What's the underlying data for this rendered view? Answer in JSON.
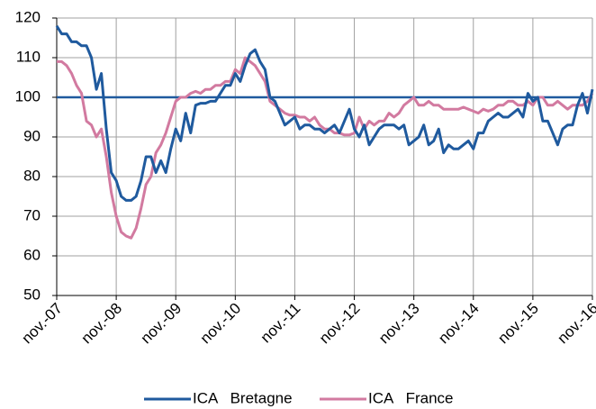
{
  "chart_data": {
    "type": "line",
    "categories": [
      "nov.-07",
      null,
      null,
      null,
      null,
      null,
      null,
      null,
      null,
      null,
      null,
      null,
      "nov.-08",
      null,
      null,
      null,
      null,
      null,
      null,
      null,
      null,
      null,
      null,
      null,
      "nov.-09",
      null,
      null,
      null,
      null,
      null,
      null,
      null,
      null,
      null,
      null,
      null,
      "nov.-10",
      null,
      null,
      null,
      null,
      null,
      null,
      null,
      null,
      null,
      null,
      null,
      "nov.-11",
      null,
      null,
      null,
      null,
      null,
      null,
      null,
      null,
      null,
      null,
      null,
      "nov.-12",
      null,
      null,
      null,
      null,
      null,
      null,
      null,
      null,
      null,
      null,
      null,
      "nov.-13",
      null,
      null,
      null,
      null,
      null,
      null,
      null,
      null,
      null,
      null,
      null,
      "nov.-14",
      null,
      null,
      null,
      null,
      null,
      null,
      null,
      null,
      null,
      null,
      null,
      "nov.-15",
      null,
      null,
      null,
      null,
      null,
      null,
      null,
      null,
      null,
      null,
      null,
      "nov.-16"
    ],
    "series": [
      {
        "name": "ICA   Bretagne",
        "color": "#1f5a9e",
        "values": [
          118,
          116,
          116,
          114,
          114,
          113,
          113,
          110,
          102,
          106,
          92,
          81,
          79,
          75,
          74,
          74,
          75,
          79,
          85,
          85,
          81,
          84,
          81,
          87,
          92,
          89,
          96,
          91,
          98,
          98.5,
          98.5,
          99,
          99,
          101,
          103,
          103,
          106,
          104,
          108,
          111,
          112,
          109,
          107,
          100,
          99,
          96,
          93,
          94,
          95,
          92,
          93,
          93,
          92,
          92,
          91,
          92,
          93,
          91,
          94,
          97,
          92,
          90,
          93,
          88,
          90,
          92,
          93,
          93,
          93,
          92,
          93,
          88,
          89,
          90,
          93,
          88,
          89,
          92,
          86,
          88,
          87,
          87,
          88,
          89,
          87,
          91,
          91,
          94,
          95,
          96,
          95,
          95,
          96,
          97,
          95,
          101,
          99,
          100,
          94,
          94,
          91,
          88,
          92,
          93,
          93,
          98,
          101,
          96,
          102
        ]
      },
      {
        "name": "ICA   France",
        "color": "#d27aa0",
        "values": [
          109,
          109,
          108,
          106,
          103,
          101,
          94,
          93,
          90,
          92,
          85,
          76,
          70,
          66,
          65,
          64.5,
          67,
          72,
          78,
          80,
          86,
          88,
          91,
          95,
          99,
          100,
          100,
          101,
          101.5,
          101,
          102,
          102,
          103,
          103,
          104,
          104,
          107,
          106,
          110,
          109,
          108,
          106,
          104,
          99,
          98,
          97,
          96,
          95.5,
          95.5,
          95,
          95,
          94,
          95,
          93,
          92,
          92,
          91,
          91,
          90.5,
          90.5,
          91,
          95,
          92,
          94,
          93,
          94,
          94,
          96,
          95,
          96,
          98,
          99,
          100,
          98,
          98,
          99,
          98,
          98,
          97,
          97,
          97,
          97,
          97.5,
          97,
          96.5,
          96,
          97,
          96.5,
          97,
          98,
          98,
          99,
          99,
          98,
          98,
          99,
          98,
          100,
          100,
          98,
          98,
          99,
          98,
          97,
          98,
          98,
          98,
          99,
          101
        ]
      }
    ],
    "reference_line": 100,
    "reference_color": "#1f5a9e",
    "ylim": [
      50,
      120
    ],
    "yticks": [
      50,
      60,
      70,
      80,
      90,
      100,
      110,
      120
    ],
    "grid": true,
    "legend": "bottom"
  }
}
